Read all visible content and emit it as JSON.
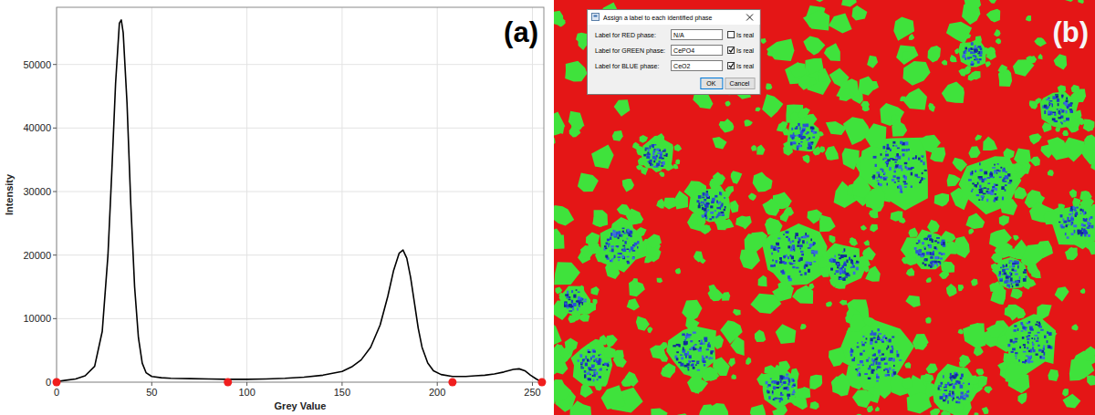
{
  "chart_data": {
    "type": "line",
    "annotations": [
      "(a)"
    ],
    "xlabel": "Grey Value",
    "ylabel": "Intensity",
    "x": [
      0,
      5,
      10,
      15,
      20,
      24,
      27,
      29,
      31,
      33,
      34,
      35,
      37,
      39,
      41,
      43,
      45,
      47,
      50,
      55,
      60,
      70,
      80,
      90,
      100,
      110,
      120,
      130,
      140,
      150,
      155,
      160,
      165,
      170,
      174,
      177,
      180,
      182,
      184,
      186,
      188,
      190,
      192,
      195,
      198,
      202,
      208,
      215,
      220,
      225,
      230,
      235,
      240,
      243,
      246,
      249,
      252,
      255
    ],
    "series": [
      {
        "type": "line",
        "color": "#000000",
        "values": [
          100,
          300,
          500,
          1000,
          2500,
          8000,
          20000,
          33000,
          47000,
          56500,
          57000,
          55000,
          44000,
          28000,
          15000,
          7000,
          3000,
          1500,
          900,
          700,
          600,
          550,
          500,
          450,
          450,
          500,
          600,
          800,
          1100,
          1700,
          2400,
          3500,
          5500,
          9000,
          13500,
          17500,
          20300,
          20800,
          19500,
          16500,
          12500,
          8500,
          5500,
          3000,
          1800,
          1200,
          900,
          900,
          1000,
          1100,
          1300,
          1600,
          2000,
          2100,
          1800,
          1100,
          500,
          0
        ]
      },
      {
        "type": "scatter",
        "color": "#f01e1e",
        "marker": "circle",
        "x": [
          0,
          90,
          208,
          255
        ],
        "values": [
          0,
          0,
          0,
          0
        ]
      }
    ],
    "xlim": [
      0,
      256
    ],
    "ylim": [
      0,
      59000
    ],
    "xticks": [
      0,
      50,
      100,
      150,
      200,
      250
    ],
    "yticks": [
      0,
      10000,
      20000,
      30000,
      40000,
      50000
    ],
    "grid": true
  },
  "segmentation": {
    "label": "(b)",
    "dialog": {
      "title": "Assign a label to each identified phase",
      "rows": [
        {
          "label": "Label for RED phase:",
          "value": "N/A",
          "checkbox": "Is real",
          "checked": false
        },
        {
          "label": "Label for GREEN phase:",
          "value": "CePO4",
          "checkbox": "Is real",
          "checked": true
        },
        {
          "label": "Label for BLUE phase:",
          "value": "CeO2",
          "checkbox": "Is real",
          "checked": true
        }
      ],
      "buttons": [
        "OK",
        "Cancel"
      ]
    }
  }
}
